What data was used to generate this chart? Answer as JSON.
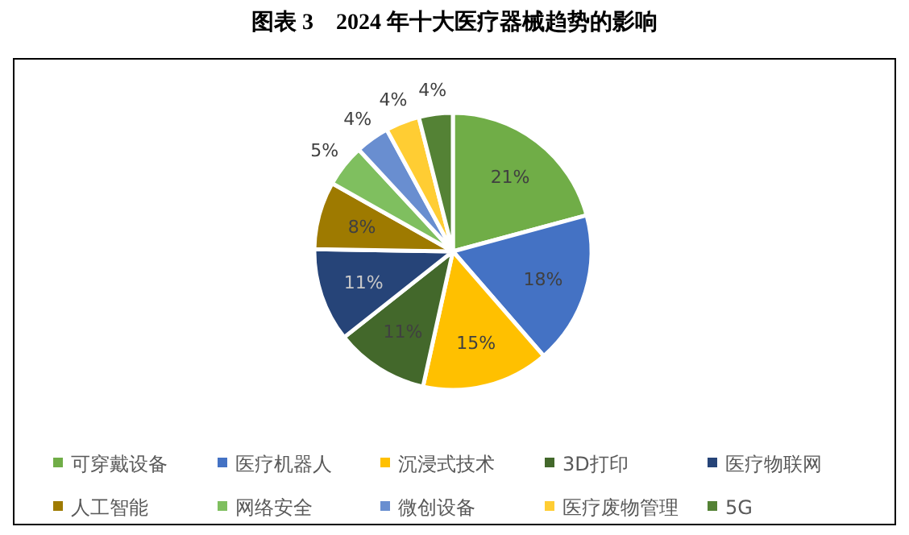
{
  "chart_data": {
    "type": "pie",
    "title": "图表 3　2024 年十大医疗器械趋势的影响",
    "categories": [
      "可穿戴设备",
      "医疗机器人",
      "沉浸式技术",
      "3D打印",
      "医疗物联网",
      "人工智能",
      "网络安全",
      "微创设备",
      "医疗废物管理",
      "5G"
    ],
    "values": [
      21,
      18,
      15,
      11,
      11,
      8,
      5,
      4,
      4,
      4
    ],
    "colors": [
      "#70ad47",
      "#4472c4",
      "#ffc000",
      "#43682b",
      "#264478",
      "#9e7a00",
      "#7fbf5f",
      "#698ed0",
      "#ffcd33",
      "#548235"
    ],
    "value_labels": [
      "21%",
      "18%",
      "15%",
      "11%",
      "11%",
      "8%",
      "5%",
      "4%",
      "4%",
      "4%"
    ],
    "legend": "bottom"
  }
}
